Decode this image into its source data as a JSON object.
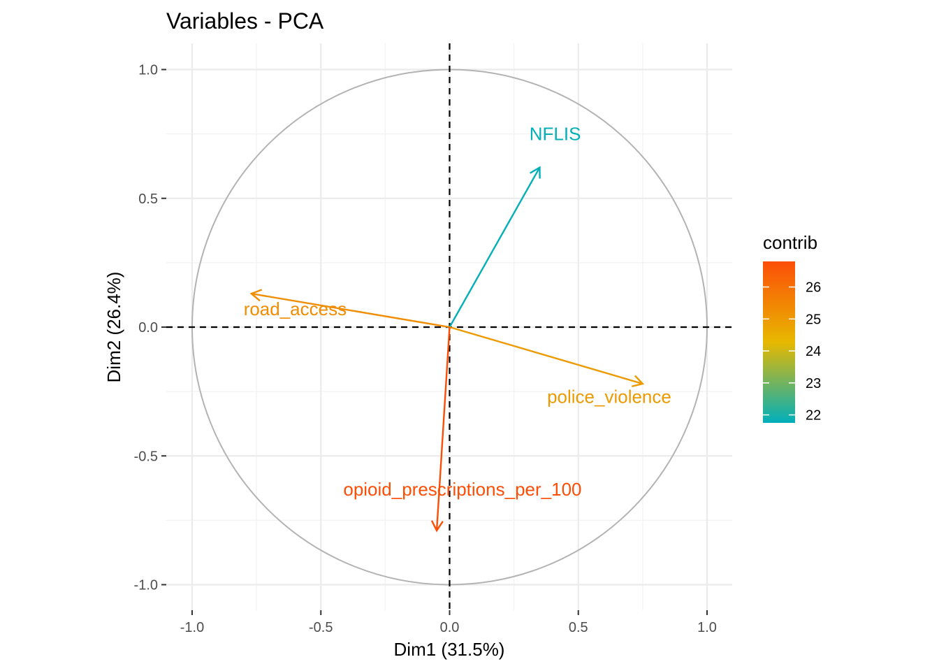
{
  "chart_data": {
    "type": "scatter",
    "subtype": "pca-correlation-circle",
    "title": "Variables - PCA",
    "xlabel": "Dim1 (31.5%)",
    "ylabel": "Dim2 (26.4%)",
    "xlim": [
      -1.1,
      1.1
    ],
    "ylim": [
      -1.1,
      1.0
    ],
    "xticks": [
      -1.0,
      -0.5,
      0.0,
      0.5,
      1.0
    ],
    "xtick_labels": [
      "-1.0",
      "-0.5",
      "0.0",
      "0.5",
      "1.0"
    ],
    "yticks": [
      -1.0,
      -0.5,
      0.0,
      0.5,
      1.0
    ],
    "ytick_labels": [
      "-1.0",
      "-0.5",
      "0.0",
      "0.5",
      "1.0"
    ],
    "grid": true,
    "variables": [
      {
        "name": "NFLIS",
        "x": 0.35,
        "y": 0.62,
        "contrib": 21.8,
        "label_dx": 0.06,
        "label_dy": 0.13
      },
      {
        "name": "road_access",
        "x": -0.77,
        "y": 0.13,
        "contrib": 25.3,
        "label_dx": 0.17,
        "label_dy": -0.06
      },
      {
        "name": "police_violence",
        "x": 0.75,
        "y": -0.22,
        "contrib": 25.0,
        "label_dx": -0.13,
        "label_dy": -0.05
      },
      {
        "name": "opioid_prescriptions_per_100",
        "x": -0.05,
        "y": -0.79,
        "contrib": 26.8,
        "label_dx": 0.1,
        "label_dy": 0.16
      }
    ],
    "legend": {
      "title": "contrib",
      "position": "right",
      "range": [
        21.75,
        26.8
      ],
      "ticks": [
        22,
        23,
        24,
        25,
        26
      ],
      "tick_labels": [
        "22",
        "23",
        "24",
        "25",
        "26"
      ],
      "colors": [
        "#00AFBB",
        "#E7B800",
        "#FC4E07"
      ]
    }
  }
}
